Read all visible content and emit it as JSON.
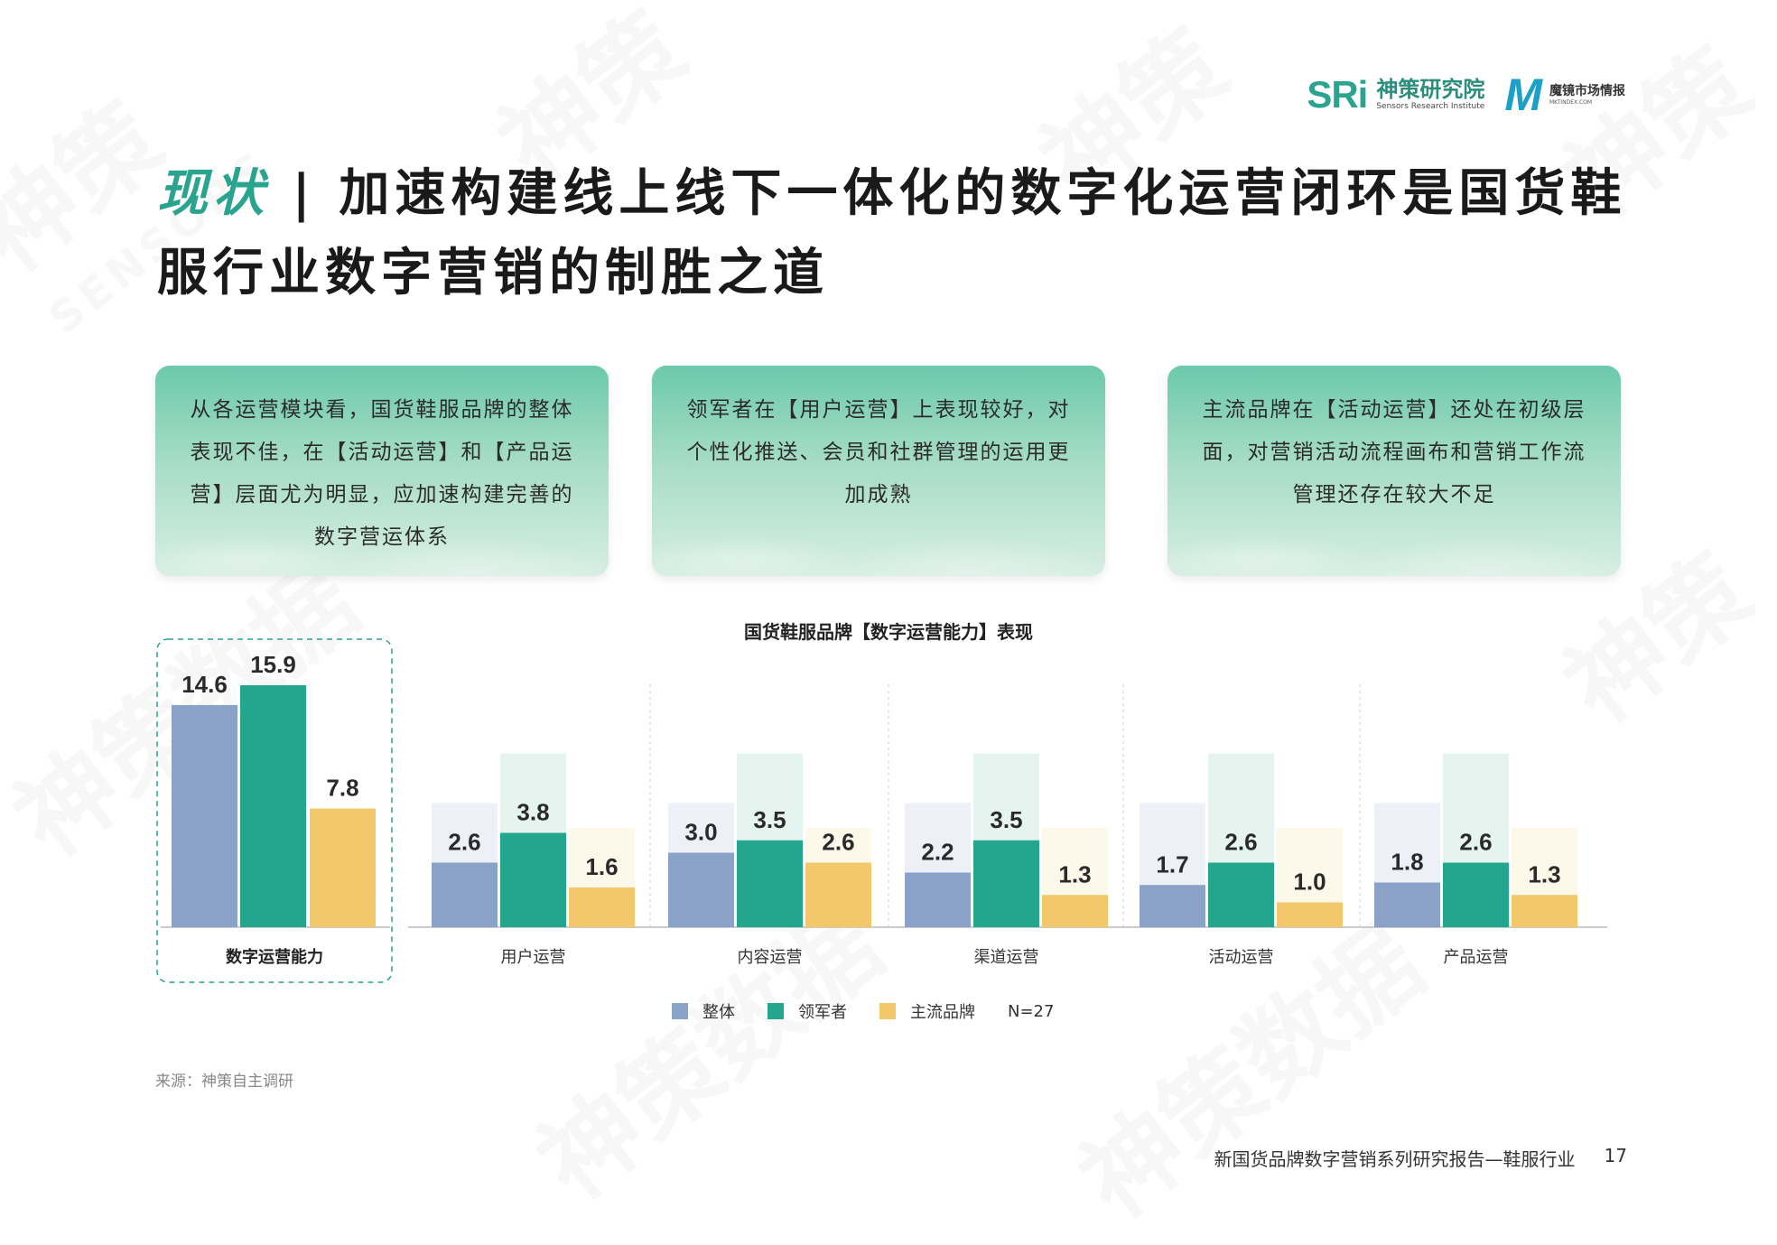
{
  "header": {
    "sri_mark": "SRi",
    "sri_cn": "神策研究院",
    "sri_en": "Sensors Research Institute",
    "mj_mark": "M",
    "mj_cn": "魔镜市场情报",
    "mj_en": "MKTINDEX.COM"
  },
  "title": {
    "accent": "现状",
    "separator": "|",
    "text": "加速构建线上线下一体化的数字化运营闭环是国货鞋服行业数字营销的制胜之道"
  },
  "cards": [
    "从各运营模块看，国货鞋服品牌的整体表现不佳，在【活动运营】和【产品运营】层面尤为明显，应加速构建完善的数字营运体系",
    "领军者在【用户运营】上表现较好，对个性化推送、会员和社群管理的运用更加成熟",
    "主流品牌在【活动运营】还处在初级层面，对营销活动流程画布和营销工作流管理还存在较大不足"
  ],
  "chart_data": {
    "type": "bar",
    "title": "国货鞋服品牌【数字运营能力】表现",
    "categories": [
      "数字运营能力",
      "用户运营",
      "内容运营",
      "渠道运营",
      "活动运营",
      "产品运营"
    ],
    "series": [
      {
        "name": "整体",
        "values": [
          14.6,
          2.6,
          3.0,
          2.2,
          1.7,
          1.8
        ],
        "color": "#8aa1c8",
        "bg": "#eef0f8"
      },
      {
        "name": "领军者",
        "values": [
          15.9,
          3.8,
          3.5,
          3.5,
          2.6,
          2.6
        ],
        "color": "#22a68e",
        "bg": "#e6f4f0"
      },
      {
        "name": "主流品牌",
        "values": [
          7.8,
          1.6,
          2.6,
          1.3,
          1.0,
          1.3
        ],
        "color": "#f2c86a",
        "bg": "#fcf8ea"
      }
    ],
    "sub_max": [
      5,
      7,
      4
    ],
    "sample_note": "N=27",
    "value_labels": [
      [
        "14.6",
        "15.9",
        "7.8"
      ],
      [
        "2.6",
        "3.8",
        "1.6"
      ],
      [
        "3.0",
        "3.5",
        "2.6"
      ],
      [
        "2.2",
        "3.5",
        "1.3"
      ],
      [
        "1.7",
        "2.6",
        "1.0"
      ],
      [
        "1.8",
        "2.6",
        "1.3"
      ]
    ]
  },
  "legend": {
    "items": [
      "整体",
      "领军者",
      "主流品牌"
    ],
    "note": "N=27"
  },
  "source": "来源：神策自主调研",
  "footer": {
    "report": "新国货品牌数字营销系列研究报告—鞋服行业",
    "page": "17"
  }
}
